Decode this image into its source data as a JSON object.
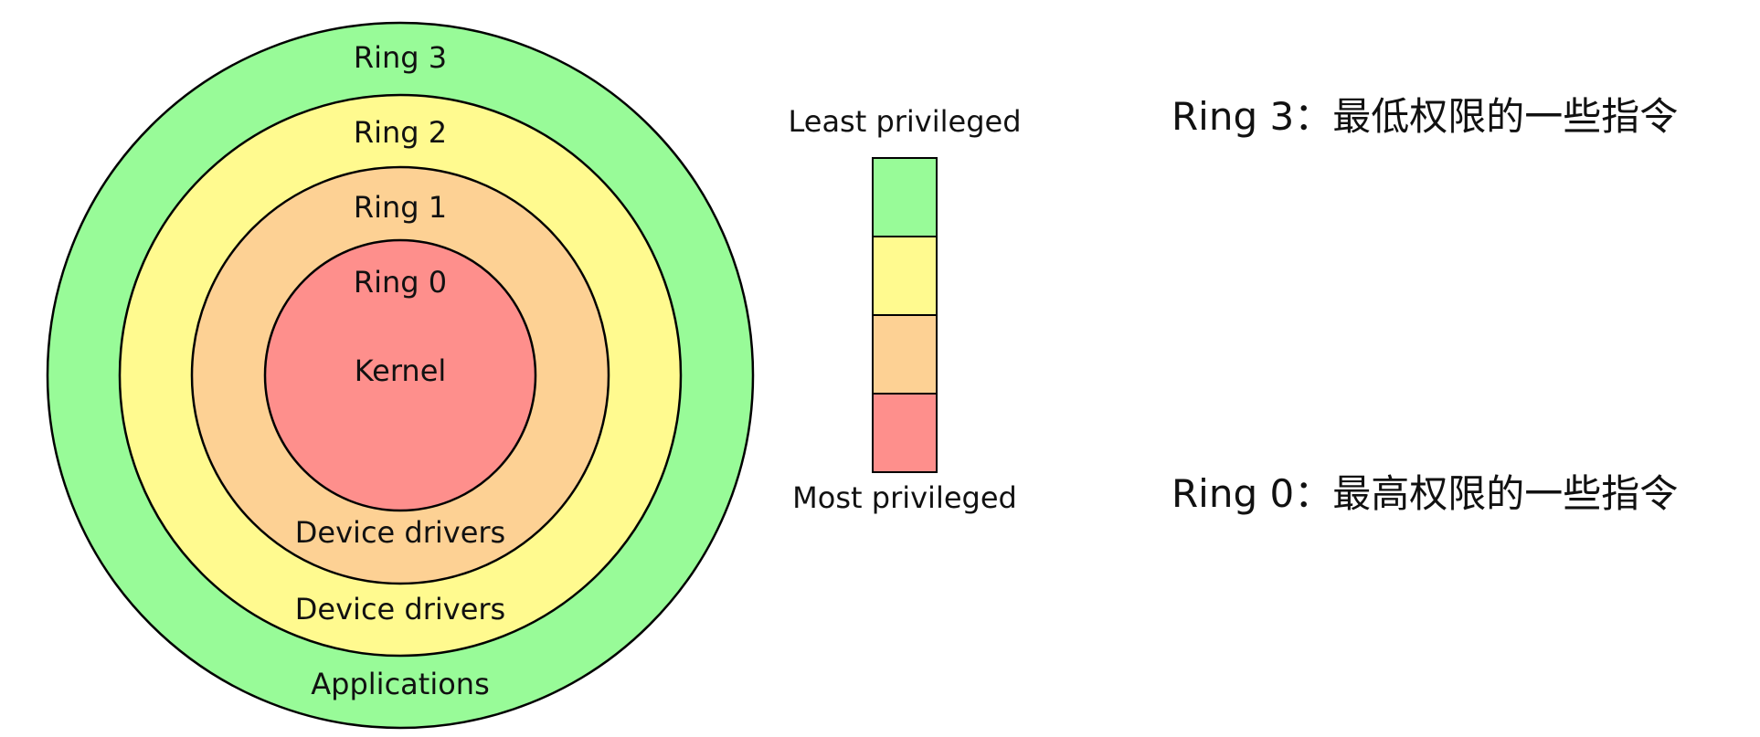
{
  "rings": [
    {
      "id": "ring-3",
      "label": "Ring 3",
      "sublabel": "Applications",
      "color": "#98fb98"
    },
    {
      "id": "ring-2",
      "label": "Ring 2",
      "sublabel": "Device drivers",
      "color": "#fffa8f"
    },
    {
      "id": "ring-1",
      "label": "Ring 1",
      "sublabel": "Device drivers",
      "color": "#fdd194"
    },
    {
      "id": "ring-0",
      "label": "Ring 0",
      "sublabel": "Kernel",
      "color": "#fe8f8c"
    }
  ],
  "scale": {
    "top_label": "Least privileged",
    "bottom_label": "Most privileged"
  },
  "notes": {
    "ring3": "Ring 3：最低权限的一些指令",
    "ring0": "Ring 0：最高权限的一些指令"
  }
}
